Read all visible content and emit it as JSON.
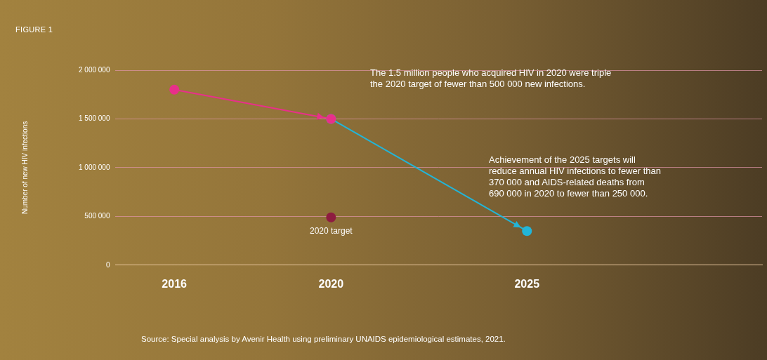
{
  "chart_data": {
    "type": "line",
    "title": "FIGURE 1",
    "ylabel": "Number of new HIV infections",
    "source": "Source: Special analysis by Avenir Health using preliminary UNAIDS epidemiological estimates, 2021.",
    "annotations": [
      "The 1.5 million people who acquired HIV in 2020 were triple\nthe 2020 target of fewer than 500 000 new infections.",
      "Achievement of the 2025 targets will\nreduce annual HIV infections to fewer than\n370 000 and AIDS-related deaths from\n690 000 in 2020 to fewer than 250 000."
    ],
    "xlim": [
      2014.5,
      2031
    ],
    "xticks": [
      2016,
      2020,
      2025
    ],
    "ylim": [
      0,
      2000000
    ],
    "yticks": [
      0,
      {
        "value": 500000,
        "label": "500 000"
      },
      {
        "value": 1000000,
        "label": "1 000 000"
      },
      {
        "value": 1500000,
        "label": "1 500 000"
      },
      {
        "value": 2000000,
        "label": "2 000 000"
      }
    ],
    "grid": true,
    "series": [
      {
        "x": [
          2016,
          2020
        ],
        "values": [
          1800000,
          1500000
        ],
        "color": "#e8308a",
        "marker": "circle",
        "line_style": "arrow"
      },
      {
        "x": [
          2020,
          2025
        ],
        "values": [
          1500000,
          350000
        ],
        "color": "#22b5d8",
        "marker": "circle",
        "line_style": "arrow"
      },
      {
        "x": [
          2020
        ],
        "values": [
          490000
        ],
        "color": "#8e1c40",
        "marker": "circle",
        "line_style": "none",
        "label": "2020 target"
      }
    ]
  }
}
